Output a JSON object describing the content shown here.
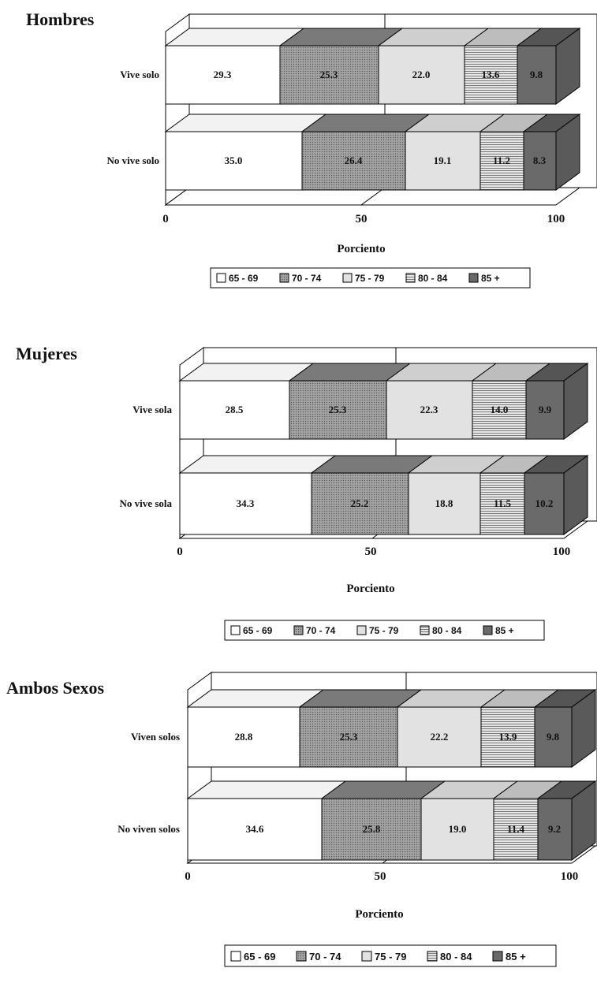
{
  "chart_data": [
    {
      "type": "bar",
      "stacked": true,
      "orientation": "horizontal",
      "three_d": true,
      "title": "Hombres",
      "categories": [
        "Vive solo",
        "No vive solo"
      ],
      "series": [
        {
          "name": "65 - 69",
          "values": [
            29.3,
            35.0
          ],
          "labels": [
            "29.3",
            "35.0"
          ]
        },
        {
          "name": "70 - 74",
          "values": [
            25.3,
            26.4
          ],
          "labels": [
            "25.3",
            "26.4"
          ]
        },
        {
          "name": "75 - 79",
          "values": [
            22.0,
            19.1
          ],
          "labels": [
            "22.0",
            "19.1"
          ]
        },
        {
          "name": "80 - 84",
          "values": [
            13.6,
            11.2
          ],
          "labels": [
            "13.6",
            "11.2"
          ]
        },
        {
          "name": "85 +",
          "values": [
            9.8,
            8.3
          ],
          "labels": [
            "9.8",
            "8.3"
          ]
        }
      ],
      "xlabel": "Porciento",
      "xlim": [
        0,
        100
      ],
      "xticks": [
        "0",
        "50",
        "100"
      ],
      "legend_position": "bottom"
    },
    {
      "type": "bar",
      "stacked": true,
      "orientation": "horizontal",
      "three_d": true,
      "title": "Mujeres",
      "categories": [
        "Vive sola",
        "No vive sola"
      ],
      "series": [
        {
          "name": "65 - 69",
          "values": [
            28.5,
            34.3
          ],
          "labels": [
            "28.5",
            "34.3"
          ]
        },
        {
          "name": "70 - 74",
          "values": [
            25.3,
            25.2
          ],
          "labels": [
            "25.3",
            "25.2"
          ]
        },
        {
          "name": "75 - 79",
          "values": [
            22.3,
            18.8
          ],
          "labels": [
            "22.3",
            "18.8"
          ]
        },
        {
          "name": "80 - 84",
          "values": [
            14.0,
            11.5
          ],
          "labels": [
            "14.0",
            "11.5"
          ]
        },
        {
          "name": "85 +",
          "values": [
            9.9,
            10.2
          ],
          "labels": [
            "9.9",
            "10.2"
          ]
        }
      ],
      "xlabel": "Porciento",
      "xlim": [
        0,
        100
      ],
      "xticks": [
        "0",
        "50",
        "100"
      ],
      "legend_position": "bottom"
    },
    {
      "type": "bar",
      "stacked": true,
      "orientation": "horizontal",
      "three_d": true,
      "title": "Ambos Sexos",
      "categories": [
        "Viven solos",
        "No viven solos"
      ],
      "series": [
        {
          "name": "65 - 69",
          "values": [
            28.8,
            34.6
          ],
          "labels": [
            "28.8",
            "34.6"
          ]
        },
        {
          "name": "70 - 74",
          "values": [
            25.3,
            25.8
          ],
          "labels": [
            "25.3",
            "25.8"
          ]
        },
        {
          "name": "75 - 79",
          "values": [
            22.2,
            19.0
          ],
          "labels": [
            "22.2",
            "19.0"
          ]
        },
        {
          "name": "80 - 84",
          "values": [
            13.9,
            11.4
          ],
          "labels": [
            "13.9",
            "11.4"
          ]
        },
        {
          "name": "85 +",
          "values": [
            9.8,
            9.2
          ],
          "labels": [
            "9.8",
            "9.2"
          ]
        }
      ],
      "xlabel": "Porciento",
      "xlim": [
        0,
        100
      ],
      "xticks": [
        "0",
        "50",
        "100"
      ],
      "legend_position": "bottom"
    }
  ],
  "series_colors": [
    "#ffffff",
    "#8e8e8e",
    "#e2e2e2",
    "#d2d2d2",
    "#6a6a6a"
  ],
  "legend_swatch_icons": [
    "open-square-icon",
    "dotted-square-icon",
    "light-square-icon",
    "striped-square-icon",
    "dark-square-icon"
  ]
}
